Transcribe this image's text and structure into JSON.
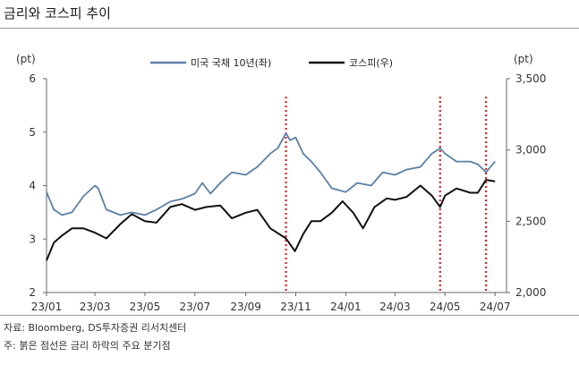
{
  "title": "금리와 코스피 추이",
  "source": "자료: Bloomberg, DS투자증권 리서치센터",
  "note": "주: 붉은 점선은 금리 하락의 주요 분기점",
  "colors": {
    "us10y": "#5b7fa6",
    "kospi": "#111111",
    "marker": "#e02020",
    "axis": "#666666"
  },
  "chart_data": {
    "type": "line",
    "left_axis": {
      "unit": "(pt)",
      "range": [
        2,
        6
      ],
      "ticks": [
        "2",
        "3",
        "4",
        "5",
        "6"
      ]
    },
    "right_axis": {
      "unit": "(pt)",
      "range": [
        2000,
        3500
      ],
      "ticks": [
        "2,000",
        "2,500",
        "3,000",
        "3,500"
      ]
    },
    "x_range": [
      "2023-01-01",
      "2024-07-15"
    ],
    "x_ticks": [
      {
        "date": "2023-01-01",
        "label": "23/01"
      },
      {
        "date": "2023-03-01",
        "label": "23/03"
      },
      {
        "date": "2023-05-01",
        "label": "23/05"
      },
      {
        "date": "2023-07-01",
        "label": "23/07"
      },
      {
        "date": "2023-09-01",
        "label": "23/09"
      },
      {
        "date": "2023-11-01",
        "label": "23/11"
      },
      {
        "date": "2024-01-01",
        "label": "24/01"
      },
      {
        "date": "2024-03-01",
        "label": "24/03"
      },
      {
        "date": "2024-05-01",
        "label": "24/05"
      },
      {
        "date": "2024-07-01",
        "label": "24/07"
      }
    ],
    "marker_dates": [
      "2023-10-20",
      "2024-04-25",
      "2024-06-20"
    ],
    "series": [
      {
        "name": "미국 국채 10년(좌)",
        "axis": "left",
        "points": [
          [
            "2023-01-01",
            3.88
          ],
          [
            "2023-01-10",
            3.55
          ],
          [
            "2023-01-20",
            3.45
          ],
          [
            "2023-02-01",
            3.5
          ],
          [
            "2023-02-15",
            3.8
          ],
          [
            "2023-03-01",
            4.0
          ],
          [
            "2023-03-05",
            3.95
          ],
          [
            "2023-03-15",
            3.55
          ],
          [
            "2023-04-01",
            3.45
          ],
          [
            "2023-04-15",
            3.5
          ],
          [
            "2023-05-01",
            3.45
          ],
          [
            "2023-05-15",
            3.55
          ],
          [
            "2023-06-01",
            3.7
          ],
          [
            "2023-06-15",
            3.75
          ],
          [
            "2023-07-01",
            3.85
          ],
          [
            "2023-07-10",
            4.05
          ],
          [
            "2023-07-20",
            3.85
          ],
          [
            "2023-08-01",
            4.05
          ],
          [
            "2023-08-15",
            4.25
          ],
          [
            "2023-09-01",
            4.2
          ],
          [
            "2023-09-15",
            4.35
          ],
          [
            "2023-10-01",
            4.6
          ],
          [
            "2023-10-10",
            4.7
          ],
          [
            "2023-10-20",
            4.98
          ],
          [
            "2023-10-25",
            4.85
          ],
          [
            "2023-11-01",
            4.9
          ],
          [
            "2023-11-10",
            4.6
          ],
          [
            "2023-11-20",
            4.45
          ],
          [
            "2023-12-01",
            4.25
          ],
          [
            "2023-12-15",
            3.95
          ],
          [
            "2024-01-01",
            3.88
          ],
          [
            "2024-01-15",
            4.05
          ],
          [
            "2024-02-01",
            4.0
          ],
          [
            "2024-02-15",
            4.25
          ],
          [
            "2024-03-01",
            4.2
          ],
          [
            "2024-03-15",
            4.3
          ],
          [
            "2024-04-01",
            4.35
          ],
          [
            "2024-04-15",
            4.6
          ],
          [
            "2024-04-25",
            4.7
          ],
          [
            "2024-05-01",
            4.6
          ],
          [
            "2024-05-15",
            4.45
          ],
          [
            "2024-06-01",
            4.45
          ],
          [
            "2024-06-10",
            4.4
          ],
          [
            "2024-06-20",
            4.25
          ],
          [
            "2024-07-01",
            4.45
          ]
        ]
      },
      {
        "name": "코스피(우)",
        "axis": "right",
        "points": [
          [
            "2023-01-01",
            2225
          ],
          [
            "2023-01-10",
            2350
          ],
          [
            "2023-01-20",
            2400
          ],
          [
            "2023-02-01",
            2450
          ],
          [
            "2023-02-15",
            2450
          ],
          [
            "2023-03-01",
            2420
          ],
          [
            "2023-03-15",
            2380
          ],
          [
            "2023-04-01",
            2480
          ],
          [
            "2023-04-15",
            2550
          ],
          [
            "2023-05-01",
            2500
          ],
          [
            "2023-05-15",
            2490
          ],
          [
            "2023-06-01",
            2600
          ],
          [
            "2023-06-15",
            2620
          ],
          [
            "2023-07-01",
            2580
          ],
          [
            "2023-07-15",
            2600
          ],
          [
            "2023-08-01",
            2610
          ],
          [
            "2023-08-15",
            2520
          ],
          [
            "2023-09-01",
            2560
          ],
          [
            "2023-09-15",
            2580
          ],
          [
            "2023-10-01",
            2450
          ],
          [
            "2023-10-20",
            2380
          ],
          [
            "2023-10-31",
            2290
          ],
          [
            "2023-11-10",
            2410
          ],
          [
            "2023-11-20",
            2500
          ],
          [
            "2023-12-01",
            2500
          ],
          [
            "2023-12-15",
            2560
          ],
          [
            "2023-12-28",
            2640
          ],
          [
            "2024-01-10",
            2560
          ],
          [
            "2024-01-22",
            2450
          ],
          [
            "2024-02-05",
            2600
          ],
          [
            "2024-02-20",
            2660
          ],
          [
            "2024-03-01",
            2650
          ],
          [
            "2024-03-15",
            2670
          ],
          [
            "2024-04-01",
            2750
          ],
          [
            "2024-04-15",
            2680
          ],
          [
            "2024-04-25",
            2600
          ],
          [
            "2024-05-01",
            2680
          ],
          [
            "2024-05-15",
            2730
          ],
          [
            "2024-06-01",
            2700
          ],
          [
            "2024-06-10",
            2700
          ],
          [
            "2024-06-20",
            2790
          ],
          [
            "2024-07-01",
            2780
          ]
        ]
      }
    ]
  }
}
